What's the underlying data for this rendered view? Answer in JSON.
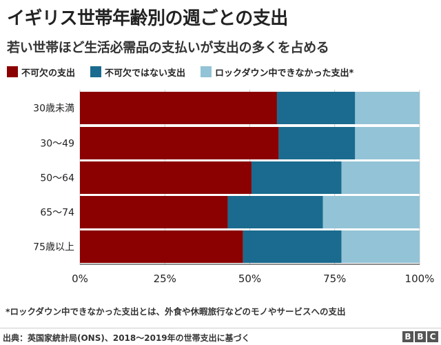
{
  "title": "イギリス世帯年齢別の週ごとの支出",
  "subtitle": "若い世帯ほど生活必需品の支払いが支出の多くを占める",
  "colors": {
    "essential": "#8b0000",
    "non_essential": "#1a6b8f",
    "lockdown": "#93c3d6"
  },
  "chart_data": {
    "type": "bar",
    "orientation": "horizontal",
    "stacked": true,
    "categories": [
      "30歳未満",
      "30～49",
      "50～64",
      "65～74",
      "75歳以上"
    ],
    "series": [
      {
        "name": "不可欠の支出",
        "values": [
          58,
          58.5,
          50.5,
          43.5,
          48
        ]
      },
      {
        "name": "不可欠ではない支出",
        "values": [
          23,
          22.5,
          26.5,
          28,
          29
        ]
      },
      {
        "name": "ロックダウン中できなかった支出*",
        "values": [
          19,
          19,
          23,
          28.5,
          23
        ]
      }
    ],
    "xlim": [
      0,
      100
    ],
    "xticks": [
      "0%",
      "25%",
      "50%",
      "75%",
      "100%"
    ],
    "xtick_values": [
      0,
      25,
      50,
      75,
      100
    ],
    "grid": true
  },
  "footnote": "*ロックダウン中できなかった支出とは、外食や休暇旅行などのモノやサービスへの支出",
  "source": "出典：英国家統計局(ONS)、2018～2019年の世帯支出に基づく",
  "logo": {
    "letters": [
      "B",
      "B",
      "C"
    ]
  }
}
